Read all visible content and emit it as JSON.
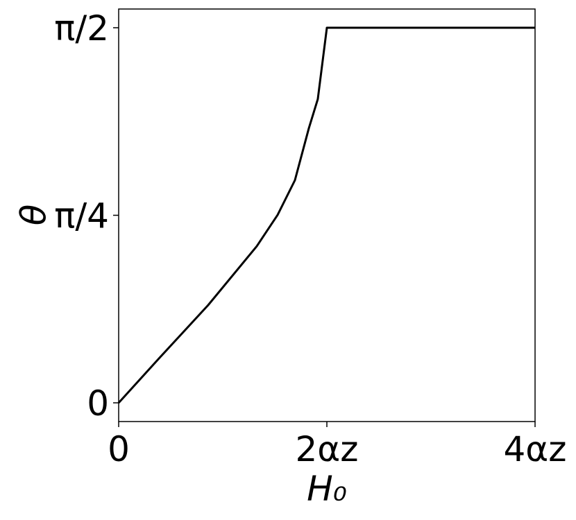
{
  "chart_data": {
    "type": "line",
    "xlabel": "H₀",
    "ylabel": "θ",
    "x": [
      0,
      0.393,
      0.86,
      1.327,
      1.527,
      1.693,
      1.827,
      1.913,
      2,
      4
    ],
    "series": [
      {
        "color": "#000000",
        "values": [
          0,
          0.1887,
          0.4094,
          0.656,
          0.787,
          0.932,
          1.15,
          1.272,
          1.5708,
          1.5708
        ]
      }
    ],
    "xlim": [
      0,
      4
    ],
    "ylim": [
      -0.0784,
      1.6492
    ],
    "xticks": [
      0,
      {
        "value": 2,
        "label": "2αz"
      },
      {
        "value": 4,
        "label": "4αz"
      }
    ],
    "yticks": [
      0,
      {
        "value": 0.7854,
        "label": "π/4"
      },
      {
        "value": 1.5708,
        "label": "π/2"
      }
    ],
    "grid": false
  }
}
